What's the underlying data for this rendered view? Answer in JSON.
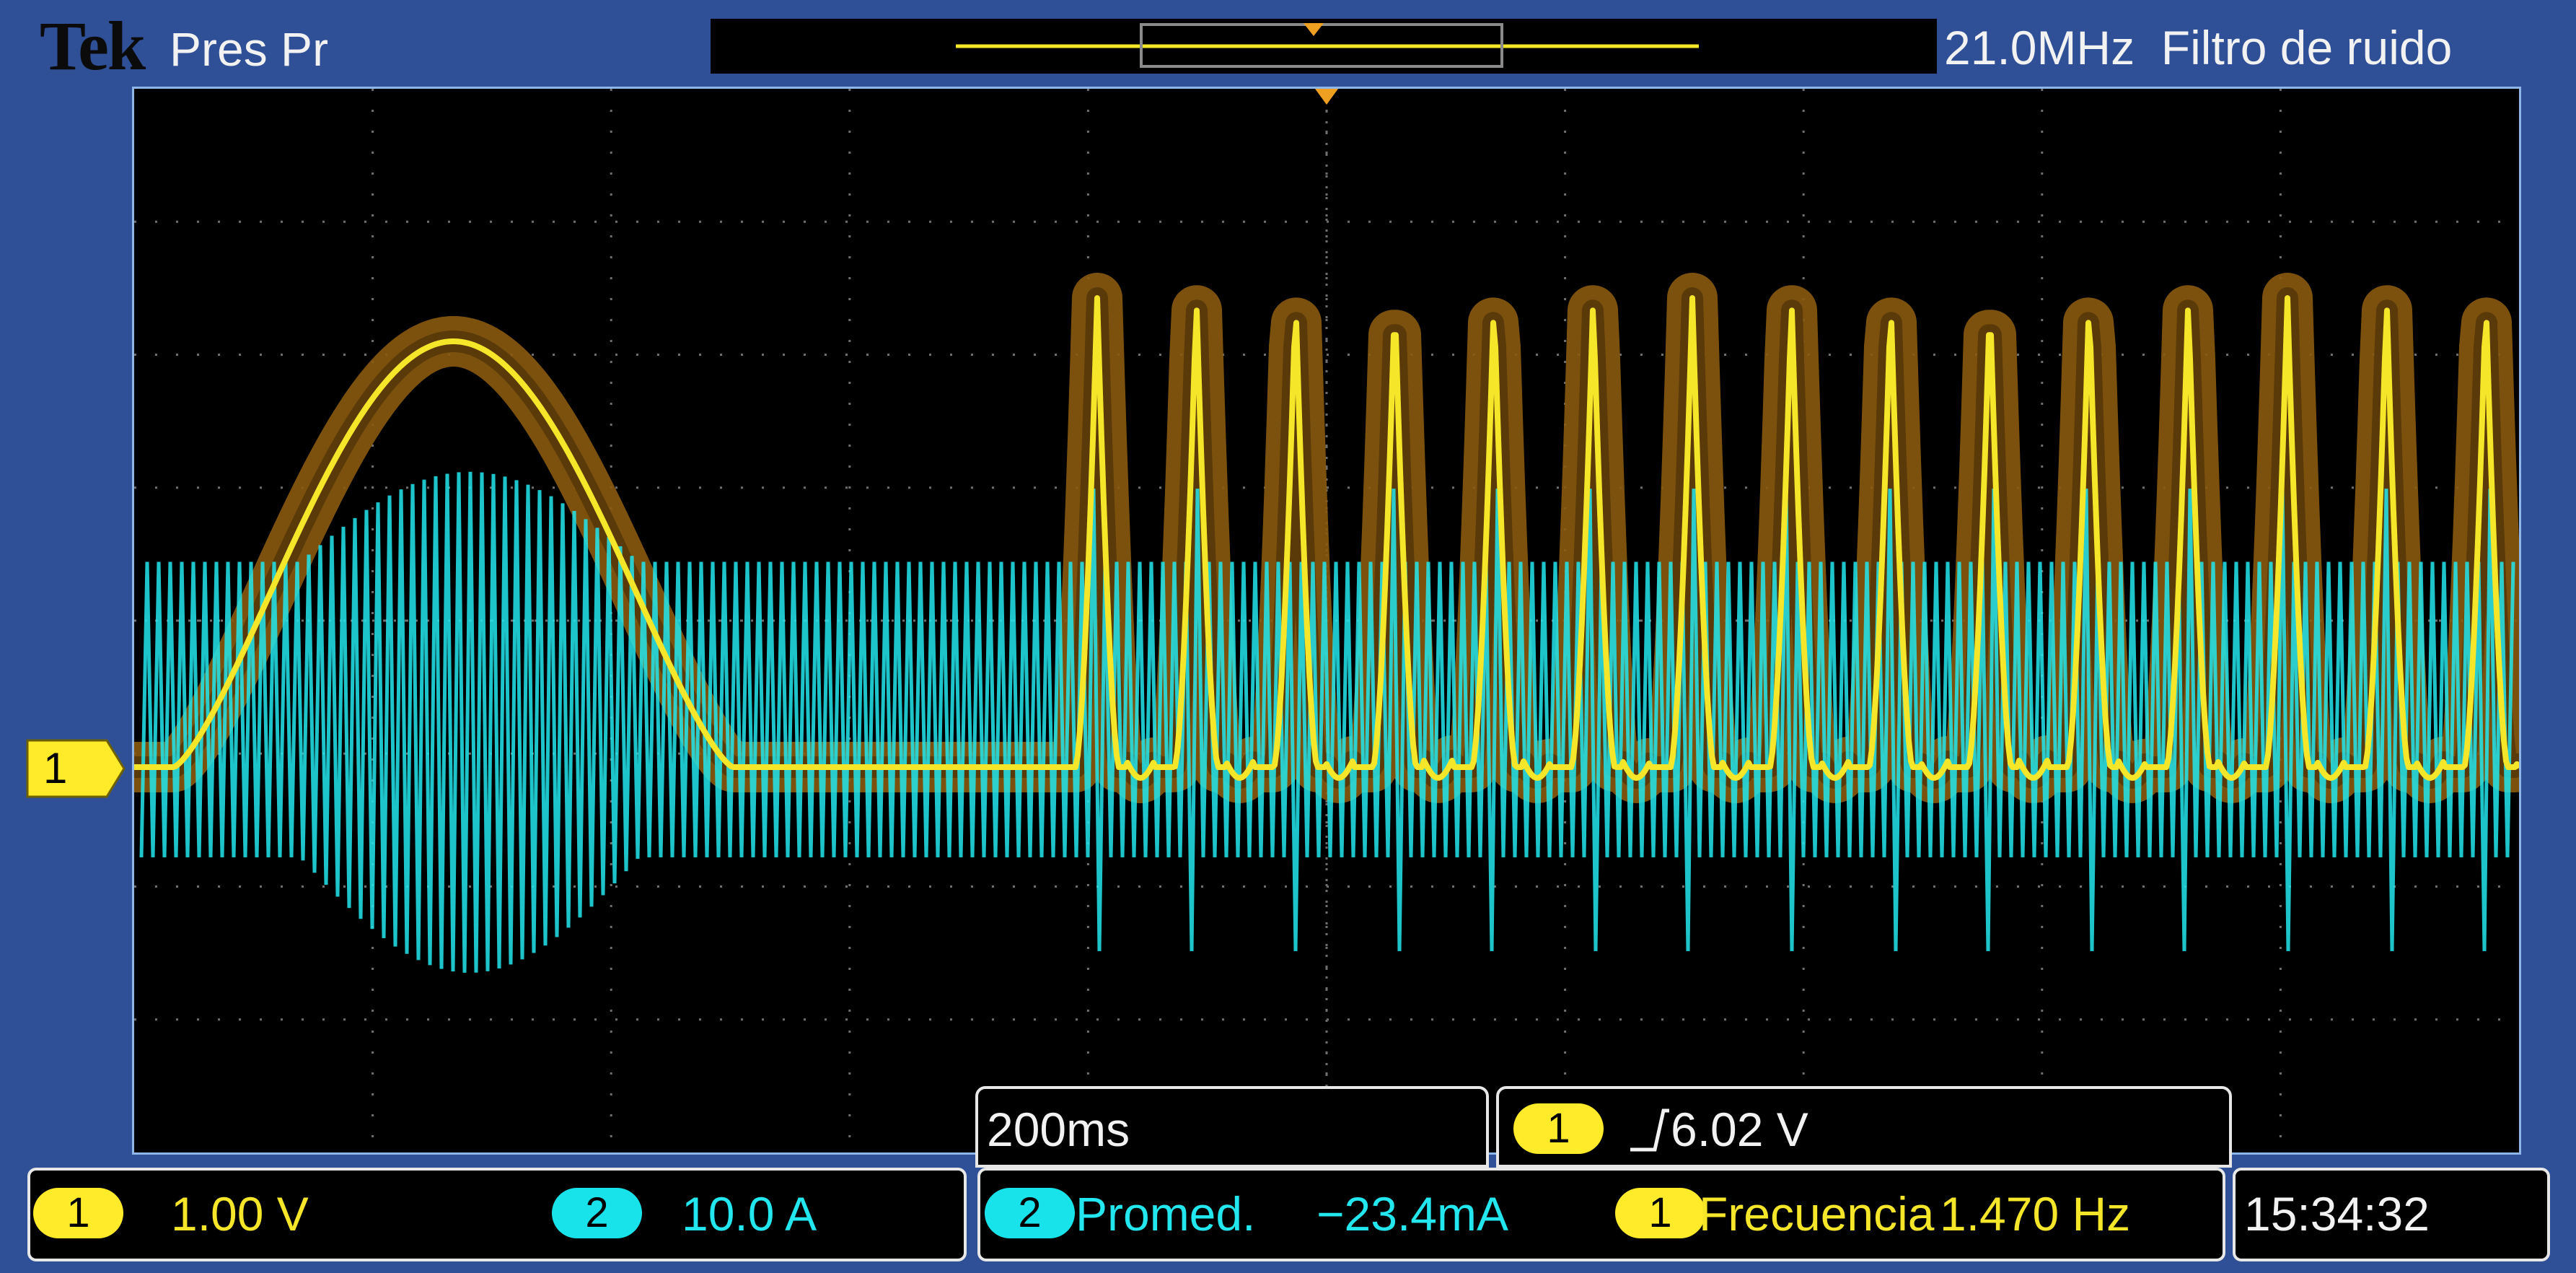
{
  "header": {
    "brand": "Tek",
    "acq_mode": "Pres Pr",
    "bandwidth": "21.0MHz",
    "filter": "Filtro de ruido"
  },
  "timebase": {
    "scale": "200ms"
  },
  "trigger": {
    "source": "1",
    "level": "6.02 V"
  },
  "channels": [
    {
      "id": "1",
      "scale": "1.00 V",
      "color": "#f5e62a"
    },
    {
      "id": "2",
      "scale": "10.0 A",
      "color": "#22e7ee"
    }
  ],
  "measurements": [
    {
      "channel": "2",
      "label": "Promed.",
      "value": "−23.4mA"
    },
    {
      "channel": "1",
      "label": "Frecuencia",
      "value": "1.470 Hz"
    }
  ],
  "clock": "15:34:32",
  "ch1_ground_marker": "1",
  "colors": {
    "frame": "#2f4f96",
    "ch1": "#f5e62a",
    "ch1_persistence": "#8a5a10",
    "ch2": "#22e7ee",
    "grid": "#6f6f6f",
    "trigger_marker": "#f0a020"
  }
}
